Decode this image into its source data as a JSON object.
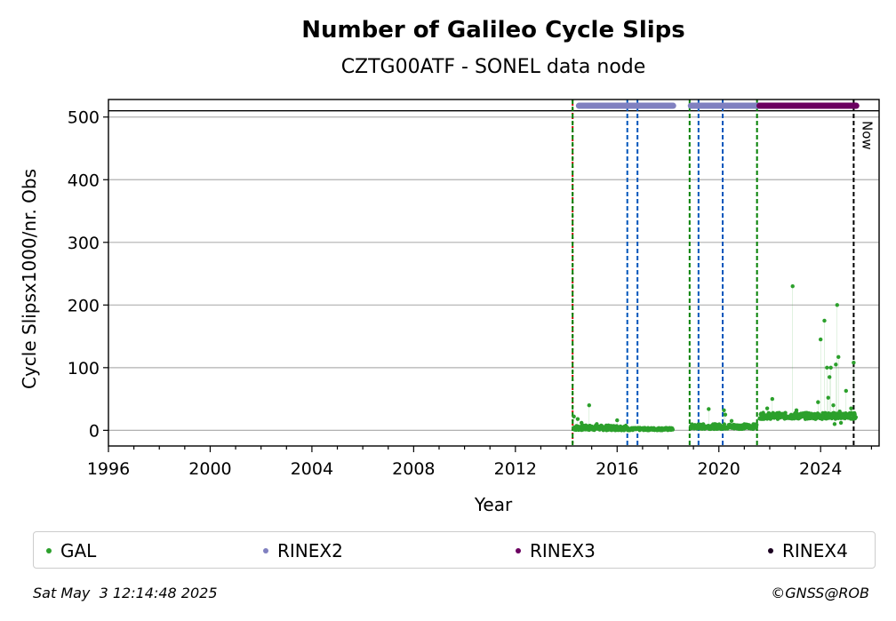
{
  "chart_data": {
    "type": "scatter",
    "title": "Number of Galileo Cycle Slips",
    "subtitle": "CZTG00ATF - SONEL data node",
    "xlabel": "Year",
    "ylabel": "Cycle Slipsx1000/nr. Obs",
    "xlim": [
      1996,
      2026.3
    ],
    "ylim": [
      -25,
      528
    ],
    "xticks": [
      1996,
      2000,
      2004,
      2008,
      2012,
      2016,
      2020,
      2024
    ],
    "yticks": [
      0,
      100,
      200,
      300,
      400,
      500
    ],
    "grid": "horizontal",
    "legend_position": "bottom",
    "reference_line_y": 510,
    "vertical_lines": [
      {
        "x": 2014.25,
        "color": "#cc0000",
        "style": "dotted"
      },
      {
        "x": 2014.25,
        "color": "#008000",
        "style": "dashed"
      },
      {
        "x": 2016.4,
        "color": "#0055bb",
        "style": "dashed"
      },
      {
        "x": 2016.8,
        "color": "#0055bb",
        "style": "dashed"
      },
      {
        "x": 2018.85,
        "color": "#008000",
        "style": "dashed"
      },
      {
        "x": 2019.2,
        "color": "#0055bb",
        "style": "dashed"
      },
      {
        "x": 2020.15,
        "color": "#0055bb",
        "style": "dashed"
      },
      {
        "x": 2021.5,
        "color": "#008000",
        "style": "dashed"
      },
      {
        "x": 2025.3,
        "color": "#000000",
        "style": "dashed"
      }
    ],
    "now_label": "Now",
    "now_x": 2025.3,
    "series": [
      {
        "name": "GAL",
        "color": "#2ca02c",
        "baseline_segments": [
          {
            "x_start": 2014.3,
            "x_end": 2016.4,
            "y_low": 0,
            "y_high": 8
          },
          {
            "x_start": 2016.4,
            "x_end": 2018.2,
            "y_low": 0,
            "y_high": 4
          },
          {
            "x_start": 2018.9,
            "x_end": 2021.5,
            "y_low": 2,
            "y_high": 10
          },
          {
            "x_start": 2021.6,
            "x_end": 2025.4,
            "y_low": 18,
            "y_high": 28
          }
        ],
        "points": [
          {
            "x": 2014.3,
            "y": 22
          },
          {
            "x": 2014.45,
            "y": 18
          },
          {
            "x": 2014.6,
            "y": 12
          },
          {
            "x": 2014.9,
            "y": 40
          },
          {
            "x": 2015.2,
            "y": 10
          },
          {
            "x": 2016.0,
            "y": 16
          },
          {
            "x": 2019.6,
            "y": 34
          },
          {
            "x": 2020.2,
            "y": 32
          },
          {
            "x": 2020.25,
            "y": 25
          },
          {
            "x": 2020.5,
            "y": 15
          },
          {
            "x": 2021.9,
            "y": 35
          },
          {
            "x": 2022.1,
            "y": 50
          },
          {
            "x": 2022.9,
            "y": 230
          },
          {
            "x": 2023.05,
            "y": 32
          },
          {
            "x": 2023.9,
            "y": 45
          },
          {
            "x": 2024.0,
            "y": 145
          },
          {
            "x": 2024.15,
            "y": 175
          },
          {
            "x": 2024.25,
            "y": 100
          },
          {
            "x": 2024.3,
            "y": 52
          },
          {
            "x": 2024.35,
            "y": 85
          },
          {
            "x": 2024.4,
            "y": 100
          },
          {
            "x": 2024.5,
            "y": 40
          },
          {
            "x": 2024.55,
            "y": 10
          },
          {
            "x": 2024.6,
            "y": 105
          },
          {
            "x": 2024.65,
            "y": 200
          },
          {
            "x": 2024.7,
            "y": 117
          },
          {
            "x": 2024.75,
            "y": 30
          },
          {
            "x": 2024.8,
            "y": 12
          },
          {
            "x": 2025.0,
            "y": 63
          },
          {
            "x": 2025.2,
            "y": 35
          },
          {
            "x": 2025.3,
            "y": 108
          }
        ]
      },
      {
        "name": "RINEX2",
        "color": "#8080c0",
        "y": 518,
        "ranges": [
          [
            2014.5,
            2018.2
          ],
          [
            2018.9,
            2021.6
          ]
        ]
      },
      {
        "name": "RINEX3",
        "color": "#6b0060",
        "y": 518,
        "ranges": [
          [
            2021.6,
            2025.4
          ]
        ]
      },
      {
        "name": "RINEX4",
        "color": "#1a0020",
        "y": 518,
        "ranges": []
      }
    ]
  },
  "legend": [
    {
      "label": "GAL",
      "color": "#2ca02c"
    },
    {
      "label": "RINEX2",
      "color": "#8080c0"
    },
    {
      "label": "RINEX3",
      "color": "#6b0060"
    },
    {
      "label": "RINEX4",
      "color": "#1a0020"
    }
  ],
  "footer": {
    "date": "Sat May  3 12:14:48 2025",
    "copyright": "©GNSS@ROB"
  }
}
